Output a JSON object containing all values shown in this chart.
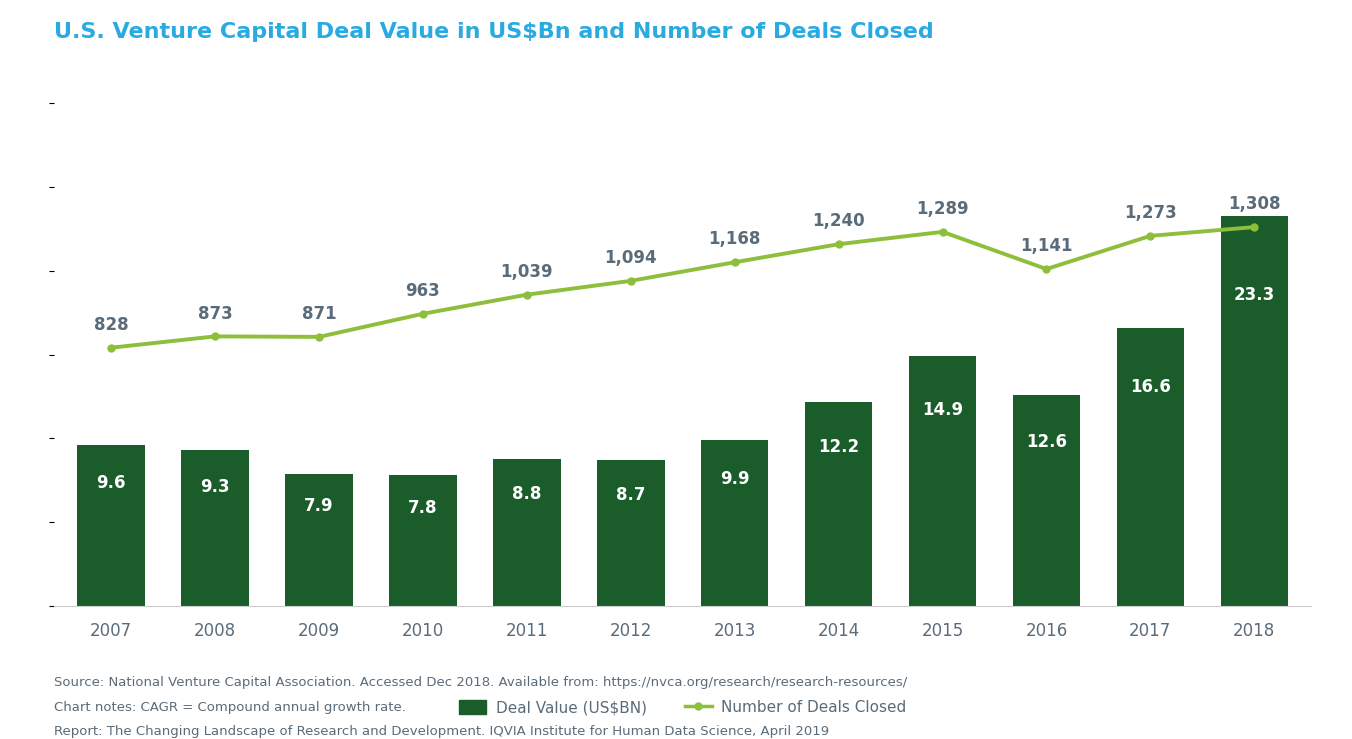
{
  "title": "U.S. Venture Capital Deal Value in US$Bn and Number of Deals Closed",
  "years": [
    2007,
    2008,
    2009,
    2010,
    2011,
    2012,
    2013,
    2014,
    2015,
    2016,
    2017,
    2018
  ],
  "deal_values": [
    9.6,
    9.3,
    7.9,
    7.8,
    8.8,
    8.7,
    9.9,
    12.2,
    14.9,
    12.6,
    16.6,
    23.3
  ],
  "num_deals": [
    828,
    873,
    871,
    963,
    1039,
    1094,
    1168,
    1240,
    1289,
    1141,
    1273,
    1308
  ],
  "bar_color": "#1a5c2a",
  "line_color": "#8dbf3c",
  "title_color": "#29abe2",
  "label_color_line": "#5a6b7a",
  "label_color_bar": "#ffffff",
  "xlabel_color": "#5a6b7a",
  "legend_bar_label": "Deal Value (US$BN)",
  "legend_line_label": "Number of Deals Closed",
  "source_line1": "Source: National Venture Capital Association. Accessed Dec 2018. Available from: https://nvca.org/research/research-resources/",
  "source_line2": "Chart notes: CAGR = Compound annual growth rate.",
  "source_line3": "Report: The Changing Landscape of Research and Development. IQVIA Institute for Human Data Science, April 2019",
  "background_color": "#ffffff",
  "title_fontsize": 16,
  "bar_label_fontsize": 12,
  "line_label_fontsize": 12,
  "axis_label_fontsize": 12,
  "source_fontsize": 9.5,
  "legend_fontsize": 11
}
